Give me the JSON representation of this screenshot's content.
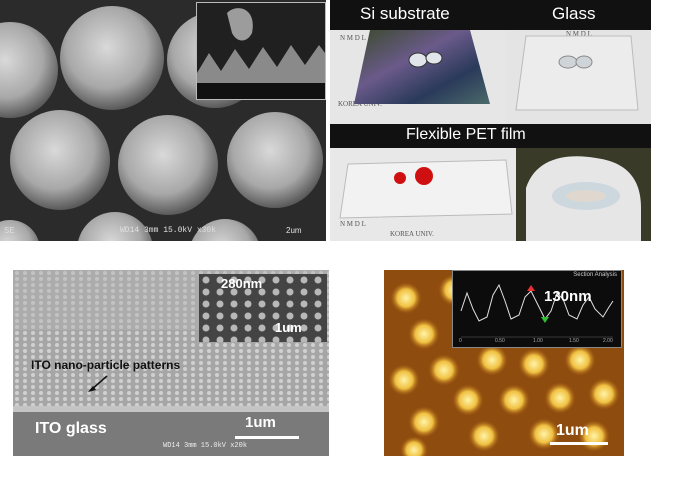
{
  "panel_a": {
    "sem_caption": "WD14  3mm  15.0kV  x30k",
    "scale_text": "2um",
    "corner_left": "SE"
  },
  "panel_b": {
    "si_label": "Si substrate",
    "glass_label": "Glass",
    "pet_label": "Flexible PET film",
    "watermark_line1": "N M D L",
    "watermark_line2": "KOREA UNIV."
  },
  "panel_c": {
    "inset_size": "280nm",
    "inset_scale": "1um",
    "pattern_label": "ITO nano-particle patterns",
    "substrate_label": "ITO glass",
    "main_scale": "1um",
    "sem_caption": "WD14  3mm  15.0kV  x20k"
  },
  "panel_d": {
    "height_label": "130nm",
    "scale_text": "1um",
    "profile_title": "Section Analysis",
    "axis_ticks": [
      "0",
      "0.50",
      "1.00",
      "1.50",
      "2.00"
    ]
  },
  "colors": {
    "sem_dark": "#2a2a2a",
    "afm_bg": "#8a4a0c",
    "afm_dot": "#f5e07a",
    "red_drop": "#d01010"
  }
}
